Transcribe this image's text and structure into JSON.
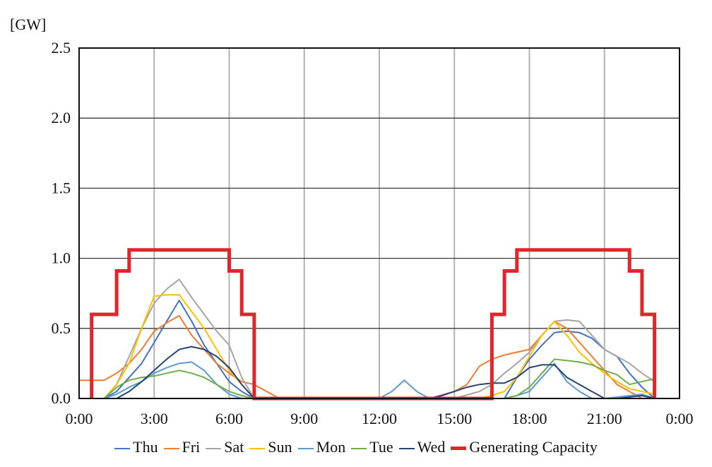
{
  "chart_data": {
    "type": "line",
    "ylabel": "[GW]",
    "xlabel": "",
    "ylim": [
      0,
      2.5
    ],
    "xlim": [
      0,
      24
    ],
    "yticks": [
      0,
      0.5,
      1.0,
      1.5,
      2.0,
      2.5
    ],
    "ytick_labels": [
      "0.0",
      "0.5",
      "1.0",
      "1.5",
      "2.0",
      "2.5"
    ],
    "xticks": [
      0,
      3,
      6,
      9,
      12,
      15,
      18,
      21,
      24
    ],
    "xtick_labels": [
      "0:00",
      "3:00",
      "6:00",
      "9:00",
      "12:00",
      "15:00",
      "18:00",
      "21:00",
      "0:00"
    ],
    "grid": true,
    "legend_position": "bottom",
    "series": [
      {
        "name": "Thu",
        "color": "#4472c4",
        "x": [
          0,
          0.5,
          1,
          1.5,
          2,
          2.5,
          3,
          3.5,
          4,
          4.5,
          5,
          5.5,
          6,
          6.5,
          7,
          7.5,
          8,
          9,
          10,
          11,
          12,
          13,
          14,
          15,
          16,
          16.5,
          17,
          17.5,
          18,
          18.5,
          19,
          19.5,
          20,
          20.5,
          21,
          21.5,
          22,
          22.5,
          23
        ],
        "y": [
          0,
          0,
          0,
          0.05,
          0.15,
          0.25,
          0.4,
          0.55,
          0.7,
          0.55,
          0.38,
          0.25,
          0.12,
          0.05,
          0,
          0,
          0,
          0,
          0,
          0,
          0,
          0,
          0,
          0,
          0,
          0,
          0,
          0.15,
          0.28,
          0.38,
          0.47,
          0.48,
          0.47,
          0.43,
          0.35,
          0.3,
          0.18,
          0.08,
          0
        ]
      },
      {
        "name": "Fri",
        "color": "#ed7d31",
        "x": [
          0,
          0.5,
          1,
          1.5,
          2,
          2.5,
          3,
          3.5,
          4,
          4.5,
          5,
          5.5,
          6,
          6.5,
          7,
          7.5,
          8,
          9,
          10,
          11,
          12,
          13,
          14,
          15,
          15.5,
          16,
          16.5,
          17,
          17.5,
          18,
          18.5,
          19,
          19.5,
          20,
          20.5,
          21,
          21.5,
          22,
          22.5,
          23
        ],
        "y": [
          0.13,
          0.13,
          0.13,
          0.18,
          0.25,
          0.35,
          0.48,
          0.54,
          0.59,
          0.45,
          0.35,
          0.25,
          0.18,
          0.12,
          0.1,
          0.05,
          0,
          0,
          0,
          0,
          0,
          0,
          0,
          0.05,
          0.1,
          0.23,
          0.28,
          0.31,
          0.33,
          0.35,
          0.45,
          0.55,
          0.5,
          0.4,
          0.3,
          0.2,
          0.1,
          0.05,
          0,
          0
        ]
      },
      {
        "name": "Sat",
        "color": "#a5a5a5",
        "x": [
          0,
          0.5,
          1,
          1.5,
          2,
          2.5,
          3,
          3.5,
          4,
          4.5,
          5,
          5.5,
          6,
          6.5,
          7,
          7.5,
          8,
          9,
          10,
          11,
          12,
          13,
          14,
          15,
          16,
          16.5,
          17,
          17.5,
          18,
          18.5,
          19,
          19.5,
          20,
          20.5,
          21,
          21.5,
          22,
          22.5,
          23
        ],
        "y": [
          0,
          0,
          0,
          0.1,
          0.3,
          0.5,
          0.68,
          0.78,
          0.85,
          0.72,
          0.6,
          0.48,
          0.38,
          0.15,
          0,
          0,
          0,
          0,
          0,
          0,
          0,
          0,
          0,
          0,
          0.05,
          0.1,
          0.18,
          0.25,
          0.33,
          0.45,
          0.55,
          0.56,
          0.55,
          0.45,
          0.35,
          0.3,
          0.25,
          0.18,
          0.12
        ]
      },
      {
        "name": "Sun",
        "color": "#ffc000",
        "x": [
          0,
          0.5,
          1,
          1.5,
          2,
          2.5,
          3,
          3.5,
          4,
          4.5,
          5,
          5.5,
          6,
          6.5,
          7,
          7.5,
          8,
          9,
          10,
          11,
          12,
          13,
          14,
          15,
          16,
          16.5,
          17,
          17.5,
          18,
          18.5,
          19,
          19.5,
          20,
          20.5,
          21,
          21.5,
          22,
          22.5,
          23
        ],
        "y": [
          0,
          0,
          0,
          0.1,
          0.25,
          0.5,
          0.73,
          0.74,
          0.74,
          0.62,
          0.5,
          0.35,
          0.2,
          0.1,
          0,
          0,
          0,
          0,
          0,
          0,
          0,
          0,
          0,
          0,
          0,
          0.02,
          0.05,
          0.15,
          0.3,
          0.45,
          0.55,
          0.45,
          0.33,
          0.25,
          0.18,
          0.12,
          0.07,
          0.05,
          0.03
        ]
      },
      {
        "name": "Mon",
        "color": "#5b9bd5",
        "x": [
          0,
          0.5,
          1,
          1.5,
          2,
          2.5,
          3,
          3.5,
          4,
          4.5,
          5,
          5.5,
          6,
          6.5,
          7,
          7.5,
          8,
          9,
          10,
          11,
          12,
          12.5,
          13,
          13.5,
          14,
          14.5,
          15,
          16,
          16.5,
          17,
          17.5,
          18,
          18.5,
          19,
          19.5,
          20,
          20.5,
          21,
          21.5,
          22,
          22.5,
          23
        ],
        "y": [
          0,
          0,
          0,
          0.03,
          0.08,
          0.12,
          0.18,
          0.22,
          0.25,
          0.26,
          0.2,
          0.1,
          0.03,
          0,
          0,
          0,
          0,
          0,
          0,
          0,
          0,
          0.05,
          0.13,
          0.05,
          0,
          0,
          0,
          0,
          0,
          0,
          0.02,
          0.05,
          0.15,
          0.25,
          0.12,
          0.05,
          0,
          0,
          0.01,
          0.02,
          0.03,
          0
        ]
      },
      {
        "name": "Tue",
        "color": "#70ad47",
        "x": [
          0,
          0.5,
          1,
          1.5,
          2,
          2.5,
          3,
          3.5,
          4,
          4.5,
          5,
          5.5,
          6,
          6.5,
          7,
          7.5,
          8,
          9,
          10,
          11,
          12,
          13,
          14,
          15,
          16,
          16.5,
          17,
          17.5,
          18,
          18.5,
          19,
          19.5,
          20,
          20.5,
          21,
          21.5,
          22,
          22.5,
          23
        ],
        "y": [
          0,
          0,
          0,
          0.08,
          0.13,
          0.15,
          0.16,
          0.18,
          0.2,
          0.18,
          0.15,
          0.1,
          0.05,
          0.02,
          0,
          0,
          0,
          0,
          0,
          0,
          0,
          0,
          0,
          0,
          0,
          0,
          0,
          0.02,
          0.08,
          0.18,
          0.28,
          0.27,
          0.26,
          0.24,
          0.2,
          0.17,
          0.1,
          0.12,
          0.14
        ]
      },
      {
        "name": "Wed",
        "color": "#264478",
        "x": [
          0,
          0.5,
          1,
          1.5,
          2,
          2.5,
          3,
          3.5,
          4,
          4.5,
          5,
          5.5,
          6,
          6.5,
          7,
          7.5,
          8,
          9,
          10,
          11,
          12,
          13,
          14,
          14.5,
          15,
          15.5,
          16,
          16.5,
          17,
          17.5,
          18,
          18.5,
          19,
          19.5,
          20,
          20.5,
          21,
          21.5,
          22,
          22.5,
          23
        ],
        "y": [
          0,
          0,
          0,
          0,
          0.05,
          0.12,
          0.2,
          0.28,
          0.35,
          0.37,
          0.35,
          0.3,
          0.22,
          0.1,
          0,
          0,
          0,
          0,
          0,
          0,
          0,
          0,
          0,
          0.02,
          0.05,
          0.08,
          0.1,
          0.11,
          0.11,
          0.15,
          0.22,
          0.24,
          0.24,
          0.15,
          0.1,
          0.05,
          0,
          0,
          0.01,
          0.02,
          0
        ]
      },
      {
        "name": "Generating Capacity",
        "color": "#e0262a",
        "step": true,
        "x": [
          0.5,
          0.5,
          1.5,
          1.5,
          2,
          2,
          6,
          6,
          6.5,
          6.5,
          7,
          7,
          16.5,
          16.5,
          17,
          17,
          17.5,
          17.5,
          22,
          22,
          22.5,
          22.5,
          23,
          23
        ],
        "y": [
          0,
          0.6,
          0.6,
          0.91,
          0.91,
          1.06,
          1.06,
          0.91,
          0.91,
          0.6,
          0.6,
          0,
          0,
          0.6,
          0.6,
          0.91,
          0.91,
          1.06,
          1.06,
          0.91,
          0.91,
          0.6,
          0.6,
          0
        ]
      }
    ]
  }
}
